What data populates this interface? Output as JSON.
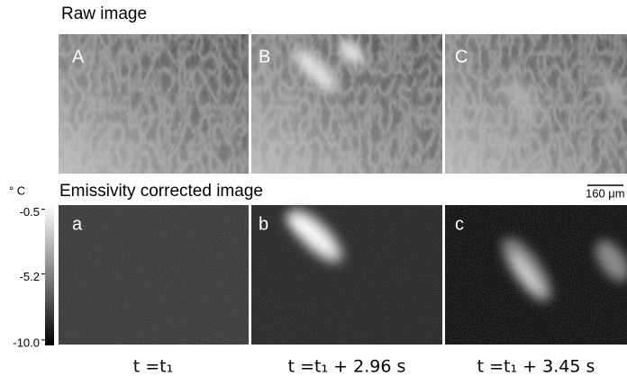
{
  "figure": {
    "raw_title": "Raw image",
    "corrected_title": "Emissivity corrected image",
    "panels_top": [
      "A",
      "B",
      "C"
    ],
    "panels_bottom": [
      "a",
      "b",
      "c"
    ],
    "times": [
      "t =t₁",
      "t =t₁ + 2.96 s",
      "t =t₁ + 3.45 s"
    ],
    "scale_bar": "160 μm",
    "colorbar": {
      "unit": "° C",
      "lim": [
        -10.4,
        -0.2
      ],
      "ticks": [
        -0.5,
        -5.2,
        {
          "value": -10.0,
          "label": "-10.0"
        }
      ]
    }
  }
}
